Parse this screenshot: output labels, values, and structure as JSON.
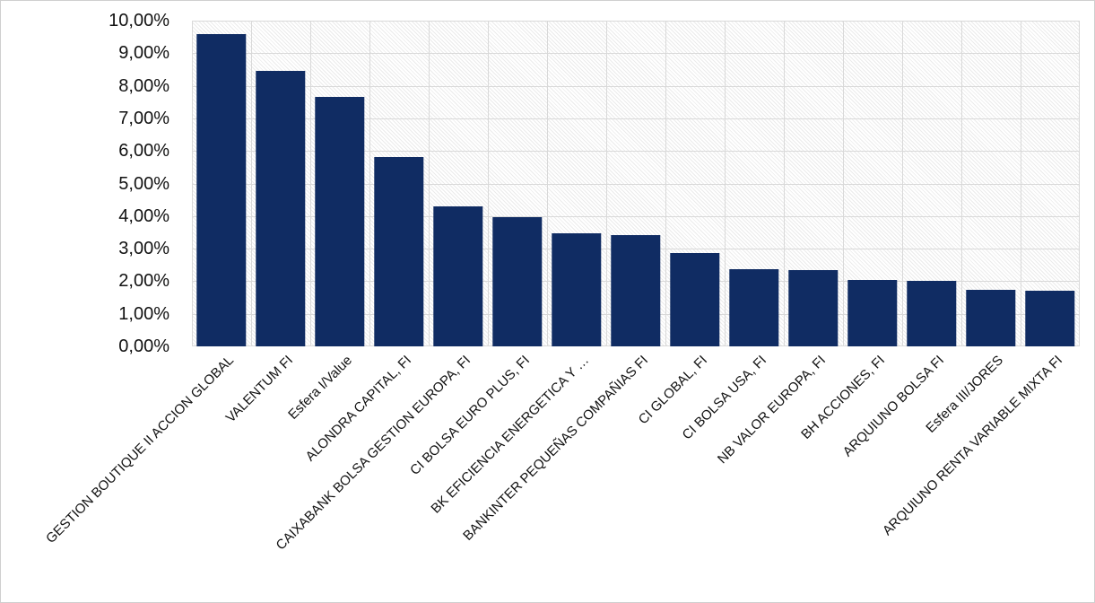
{
  "chart_data": {
    "type": "bar",
    "title": "",
    "xlabel": "",
    "ylabel": "",
    "categories": [
      "GESTION BOUTIQUE II ACCION GLOBAL",
      "VALENTUM FI",
      "Esfera I/Value",
      "ALONDRA CAPITAL, FI",
      "CAIXABANK BOLSA GESTION EUROPA, FI",
      "CI BOLSA EURO PLUS, FI",
      "BK EFICIENCIA ENERGETICA Y …",
      "BANKINTER PEQUEÑAS COMPAÑIAS FI",
      "CI GLOBAL, FI",
      "CI BOLSA USA, FI",
      "NB VALOR EUROPA, FI",
      "BH ACCIONES, FI",
      "ARQUIUNO BOLSA FI",
      "Esfera III/JORES",
      "ARQUIUNO RENTA VARIABLE MIXTA FI"
    ],
    "values": [
      9.58,
      8.47,
      7.66,
      5.8,
      4.3,
      3.96,
      3.46,
      3.41,
      2.86,
      2.38,
      2.35,
      2.05,
      2.02,
      1.74,
      1.7
    ],
    "value_unit": "%",
    "ylim": [
      0,
      10
    ],
    "y_ticks": [
      "10,00%",
      "9,00%",
      "8,00%",
      "7,00%",
      "6,00%",
      "5,00%",
      "4,00%",
      "3,00%",
      "2,00%",
      "1,00%",
      "0,00%"
    ],
    "grid": "horizontal and vertical major gridlines on",
    "legend": "none",
    "x_label_rotation_deg": 45
  },
  "colors": {
    "bar": "#102c63",
    "gridline": "#d9d9d9",
    "hatch": "#ebebeb",
    "axis_text": "#111111",
    "chart_border": "#cfcfcf",
    "plot_background": "#ffffff"
  }
}
